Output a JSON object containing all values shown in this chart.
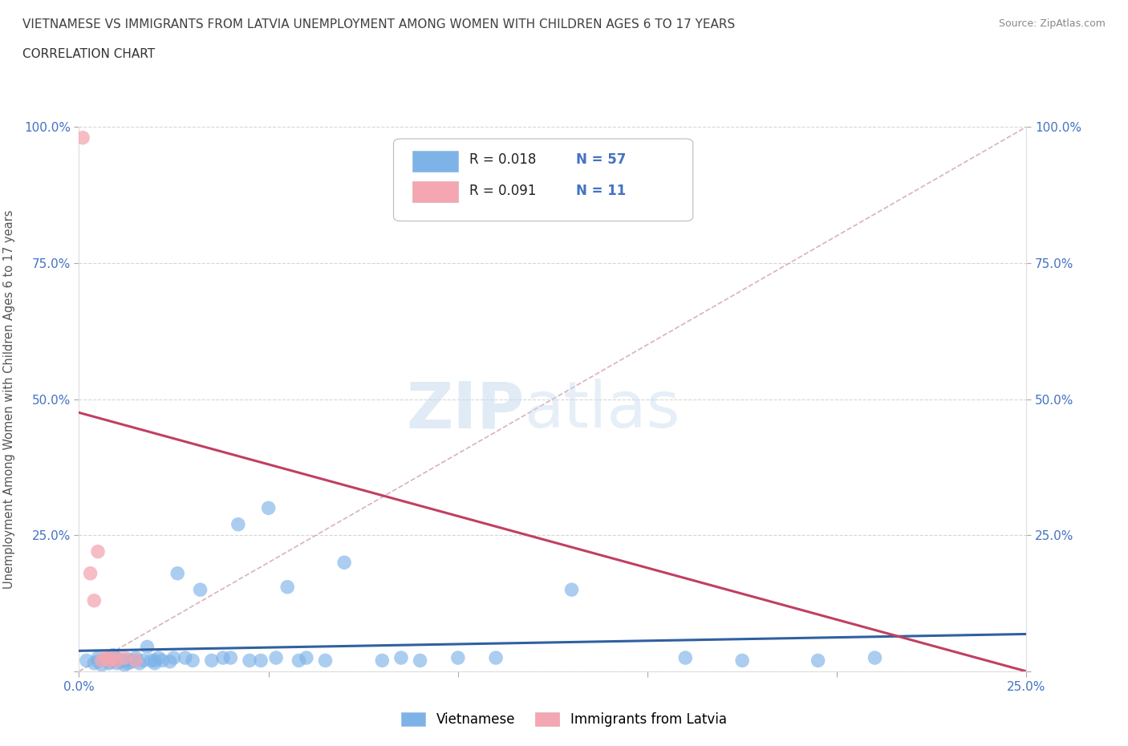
{
  "title_line1": "VIETNAMESE VS IMMIGRANTS FROM LATVIA UNEMPLOYMENT AMONG WOMEN WITH CHILDREN AGES 6 TO 17 YEARS",
  "title_line2": "CORRELATION CHART",
  "source": "Source: ZipAtlas.com",
  "ylabel": "Unemployment Among Women with Children Ages 6 to 17 years",
  "xlim": [
    0.0,
    0.25
  ],
  "ylim": [
    0.0,
    1.0
  ],
  "xticks": [
    0.0,
    0.05,
    0.1,
    0.15,
    0.2,
    0.25
  ],
  "xticklabels": [
    "0.0%",
    "",
    "",
    "",
    "",
    "25.0%"
  ],
  "yticks": [
    0.0,
    0.25,
    0.5,
    0.75,
    1.0
  ],
  "yticklabels_left": [
    "",
    "25.0%",
    "50.0%",
    "75.0%",
    "100.0%"
  ],
  "yticklabels_right": [
    "",
    "25.0%",
    "50.0%",
    "75.0%",
    "100.0%"
  ],
  "vietnamese_color": "#7EB3E8",
  "latvian_color": "#F4A7B2",
  "vietnamese_R": 0.018,
  "vietnamese_N": 57,
  "latvian_R": 0.091,
  "latvian_N": 11,
  "legend_label_1": "Vietnamese",
  "legend_label_2": "Immigrants from Latvia",
  "bg_color": "#FFFFFF",
  "grid_color": "#CCCCCC",
  "title_color": "#404040",
  "regression_blue": "#3060A0",
  "regression_pink": "#C04060",
  "diag_color": "#D0A0A8",
  "tick_label_color": "#4472C4",
  "vietnamese_x": [
    0.002,
    0.004,
    0.005,
    0.005,
    0.006,
    0.007,
    0.008,
    0.008,
    0.009,
    0.01,
    0.01,
    0.01,
    0.011,
    0.012,
    0.012,
    0.013,
    0.013,
    0.014,
    0.015,
    0.015,
    0.016,
    0.017,
    0.018,
    0.019,
    0.02,
    0.02,
    0.021,
    0.022,
    0.024,
    0.025,
    0.026,
    0.028,
    0.03,
    0.032,
    0.035,
    0.038,
    0.04,
    0.042,
    0.045,
    0.048,
    0.05,
    0.052,
    0.055,
    0.058,
    0.06,
    0.065,
    0.07,
    0.08,
    0.085,
    0.09,
    0.1,
    0.11,
    0.13,
    0.16,
    0.175,
    0.195,
    0.21
  ],
  "vietnamese_y": [
    0.02,
    0.015,
    0.018,
    0.025,
    0.012,
    0.022,
    0.018,
    0.015,
    0.03,
    0.02,
    0.015,
    0.025,
    0.018,
    0.012,
    0.02,
    0.015,
    0.022,
    0.018,
    0.02,
    0.025,
    0.015,
    0.02,
    0.045,
    0.02,
    0.015,
    0.02,
    0.025,
    0.02,
    0.018,
    0.025,
    0.18,
    0.025,
    0.02,
    0.15,
    0.02,
    0.025,
    0.025,
    0.27,
    0.02,
    0.02,
    0.3,
    0.025,
    0.155,
    0.02,
    0.025,
    0.02,
    0.2,
    0.02,
    0.025,
    0.02,
    0.025,
    0.025,
    0.15,
    0.025,
    0.02,
    0.02,
    0.025
  ],
  "latvian_x": [
    0.001,
    0.003,
    0.004,
    0.005,
    0.006,
    0.007,
    0.008,
    0.009,
    0.01,
    0.012,
    0.015
  ],
  "latvian_y": [
    0.98,
    0.18,
    0.13,
    0.22,
    0.02,
    0.025,
    0.02,
    0.025,
    0.02,
    0.025,
    0.02
  ]
}
